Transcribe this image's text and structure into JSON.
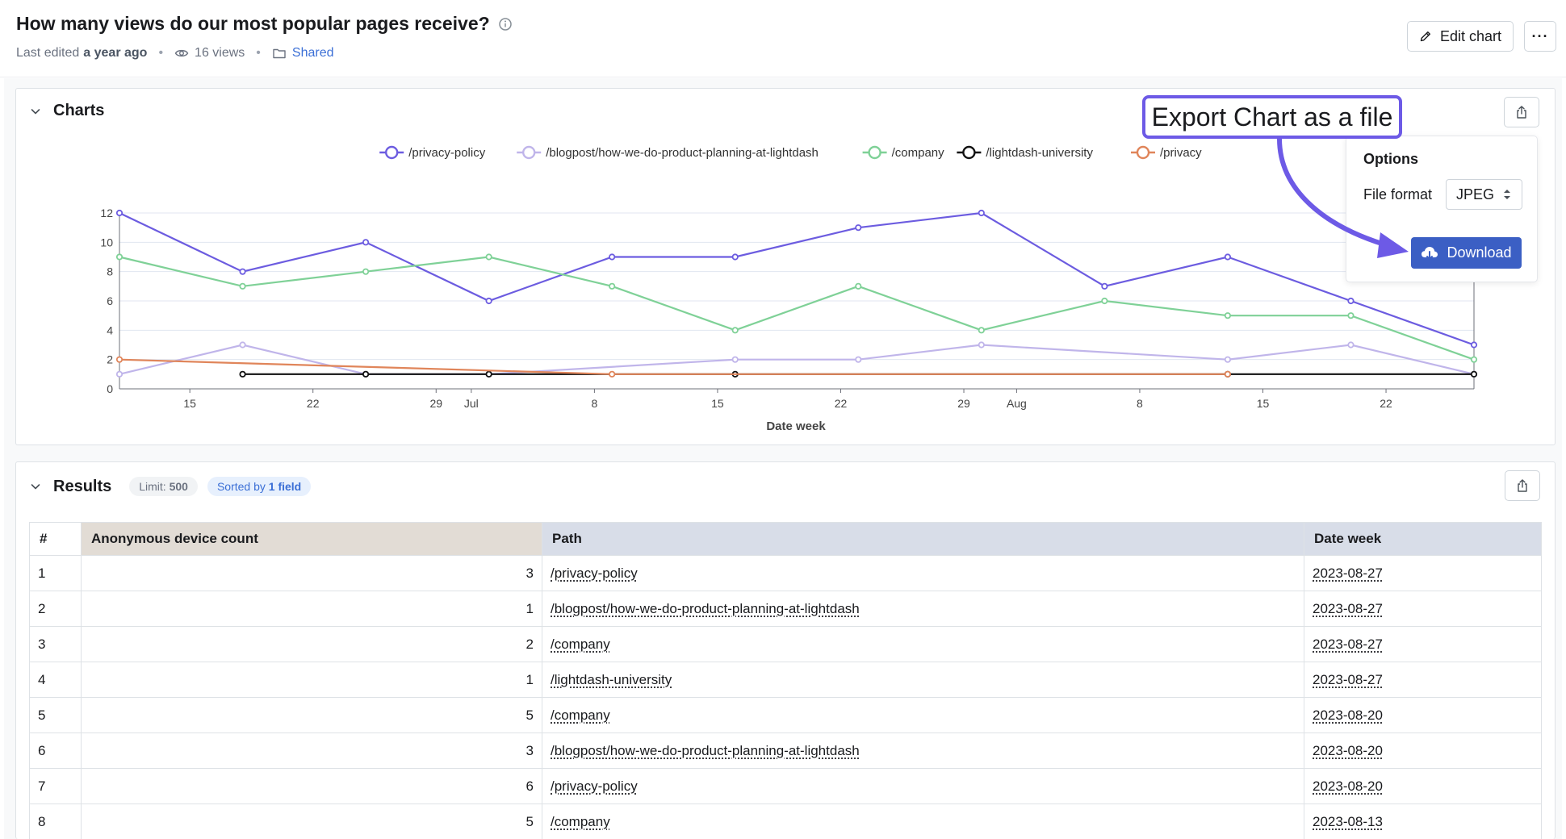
{
  "header": {
    "title": "How many views do our most popular pages receive?",
    "last_edited_prefix": "Last edited",
    "last_edited": "a year ago",
    "views": "16 views",
    "space": "Shared",
    "edit_label": "Edit chart",
    "more_label": "···"
  },
  "charts_panel": {
    "title": "Charts"
  },
  "export": {
    "callout": "Export Chart as a file",
    "options_title": "Options",
    "file_format_label": "File format",
    "file_format_value": "JPEG",
    "download_label": "Download"
  },
  "results_panel": {
    "title": "Results",
    "limit_label": "Limit:",
    "limit_value": "500",
    "sorted_label": "Sorted by",
    "sorted_value": "1 field"
  },
  "table": {
    "columns": [
      "#",
      "Anonymous device count",
      "Path",
      "Date week"
    ],
    "rows": [
      [
        "1",
        "3",
        "/privacy-policy",
        "2023-08-27"
      ],
      [
        "2",
        "1",
        "/blogpost/how-we-do-product-planning-at-lightdash",
        "2023-08-27"
      ],
      [
        "3",
        "2",
        "/company",
        "2023-08-27"
      ],
      [
        "4",
        "1",
        "/lightdash-university",
        "2023-08-27"
      ],
      [
        "5",
        "5",
        "/company",
        "2023-08-20"
      ],
      [
        "6",
        "3",
        "/blogpost/how-we-do-product-planning-at-lightdash",
        "2023-08-20"
      ],
      [
        "7",
        "6",
        "/privacy-policy",
        "2023-08-20"
      ],
      [
        "8",
        "5",
        "/company",
        "2023-08-13"
      ]
    ]
  },
  "chart_data": {
    "type": "line",
    "xlabel": "Date week",
    "ylabel": "",
    "ylim": [
      0,
      12
    ],
    "yticks": [
      0,
      2,
      4,
      6,
      8,
      10,
      12
    ],
    "xlim": [
      "2023-06-11",
      "2023-08-27"
    ],
    "xticks": [
      {
        "date": "2023-06-15",
        "label": "15"
      },
      {
        "date": "2023-06-22",
        "label": "22"
      },
      {
        "date": "2023-06-29",
        "label": "29"
      },
      {
        "date": "2023-07-01",
        "label": "Jul"
      },
      {
        "date": "2023-07-08",
        "label": "8"
      },
      {
        "date": "2023-07-15",
        "label": "15"
      },
      {
        "date": "2023-07-22",
        "label": "22"
      },
      {
        "date": "2023-07-29",
        "label": "29"
      },
      {
        "date": "2023-08-01",
        "label": "Aug"
      },
      {
        "date": "2023-08-08",
        "label": "8"
      },
      {
        "date": "2023-08-15",
        "label": "15"
      },
      {
        "date": "2023-08-22",
        "label": "22"
      }
    ],
    "grid": true,
    "legend_position": "top",
    "series": [
      {
        "name": "/privacy-policy",
        "color": "#6c5ce0",
        "x": [
          "2023-06-11",
          "2023-06-18",
          "2023-06-25",
          "2023-07-02",
          "2023-07-09",
          "2023-07-16",
          "2023-07-23",
          "2023-07-30",
          "2023-08-06",
          "2023-08-13",
          "2023-08-20",
          "2023-08-27"
        ],
        "y": [
          12,
          8,
          10,
          6,
          9,
          9,
          11,
          12,
          7,
          9,
          6,
          3
        ]
      },
      {
        "name": "/blogpost/how-we-do-product-planning-at-lightdash",
        "color": "#c0b5ea",
        "x": [
          "2023-06-11",
          "2023-06-18",
          "2023-06-25",
          "2023-07-02",
          "2023-07-16",
          "2023-07-23",
          "2023-07-30",
          "2023-08-13",
          "2023-08-20",
          "2023-08-27"
        ],
        "y": [
          1,
          3,
          1,
          1,
          2,
          2,
          3,
          2,
          3,
          1
        ]
      },
      {
        "name": "/company",
        "color": "#7fd197",
        "x": [
          "2023-06-11",
          "2023-06-18",
          "2023-06-25",
          "2023-07-02",
          "2023-07-09",
          "2023-07-16",
          "2023-07-23",
          "2023-07-30",
          "2023-08-06",
          "2023-08-13",
          "2023-08-20",
          "2023-08-27"
        ],
        "y": [
          9,
          7,
          8,
          9,
          7,
          4,
          7,
          4,
          6,
          5,
          5,
          2
        ]
      },
      {
        "name": "/lightdash-university",
        "color": "#111111",
        "x": [
          "2023-06-18",
          "2023-06-25",
          "2023-07-02",
          "2023-07-16",
          "2023-08-13",
          "2023-08-27"
        ],
        "y": [
          1,
          1,
          1,
          1,
          1,
          1
        ]
      },
      {
        "name": "/privacy",
        "color": "#e0855a",
        "x": [
          "2023-06-11",
          "2023-07-09",
          "2023-08-13"
        ],
        "y": [
          2,
          1,
          1
        ]
      }
    ]
  }
}
